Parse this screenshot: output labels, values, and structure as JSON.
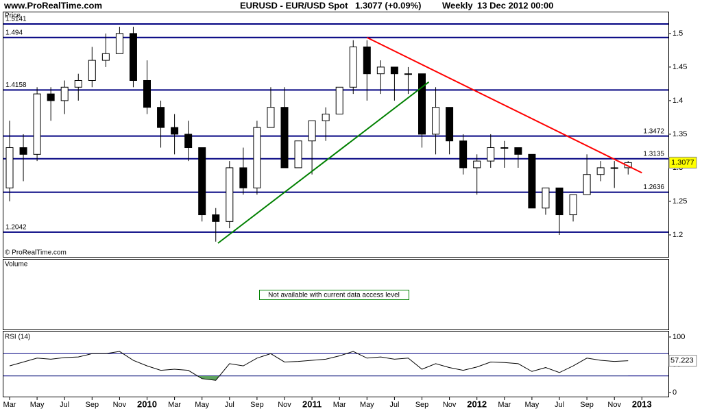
{
  "header": {
    "site": "www.ProRealTime.com",
    "symbol": "EURUSD - EUR/USD Spot",
    "quote": "1.3077 (+0.09%)",
    "period": "Weekly",
    "date": "13 Dec 2012 00:00",
    "copyright": "© ProRealTime.com"
  },
  "chart_data": [
    {
      "type": "candlestick",
      "title": "Price",
      "categories": [
        "Mar",
        null,
        "May",
        null,
        "Jul",
        null,
        "Sep",
        null,
        "Nov",
        null,
        "2010",
        null,
        "Mar",
        null,
        "May",
        null,
        "Jul",
        null,
        "Sep",
        null,
        "Nov",
        null,
        "2011",
        null,
        "Mar",
        null,
        "May",
        null,
        "Jul",
        null,
        "Sep",
        null,
        "Nov",
        null,
        "2012",
        null,
        "Mar",
        null,
        "May",
        null,
        "Jul",
        null,
        "Sep",
        null,
        "Nov",
        null,
        "2013"
      ],
      "open": [
        1.27,
        1.33,
        1.32,
        1.41,
        1.4,
        1.42,
        1.43,
        1.46,
        1.47,
        1.5,
        1.43,
        1.39,
        1.36,
        1.35,
        1.33,
        1.23,
        1.22,
        1.3,
        1.27,
        1.36,
        1.39,
        1.3,
        1.34,
        1.37,
        1.38,
        1.42,
        1.48,
        1.44,
        1.45,
        1.44,
        1.44,
        1.35,
        1.39,
        1.34,
        1.3,
        1.31,
        1.33,
        1.33,
        1.32,
        1.24,
        1.27,
        1.23,
        1.26,
        1.29,
        1.3,
        1.3,
        null
      ],
      "high": [
        1.37,
        1.35,
        1.42,
        1.42,
        1.43,
        1.44,
        1.48,
        1.5,
        1.51,
        1.51,
        1.46,
        1.4,
        1.38,
        1.37,
        1.33,
        1.24,
        1.31,
        1.33,
        1.37,
        1.42,
        1.42,
        1.34,
        1.37,
        1.39,
        1.42,
        1.49,
        1.49,
        1.46,
        1.45,
        1.45,
        1.44,
        1.42,
        1.39,
        1.35,
        1.32,
        1.35,
        1.34,
        1.33,
        1.32,
        1.27,
        1.27,
        1.26,
        1.32,
        1.31,
        1.31,
        1.31,
        null
      ],
      "low": [
        1.25,
        1.28,
        1.31,
        1.37,
        1.38,
        1.4,
        1.42,
        1.45,
        1.47,
        1.42,
        1.38,
        1.33,
        1.32,
        1.31,
        1.22,
        1.19,
        1.21,
        1.26,
        1.26,
        1.36,
        1.3,
        1.3,
        1.29,
        1.34,
        1.38,
        1.41,
        1.4,
        1.41,
        1.4,
        1.41,
        1.33,
        1.32,
        1.32,
        1.29,
        1.26,
        1.3,
        1.3,
        1.3,
        1.24,
        1.23,
        1.2,
        1.22,
        1.26,
        1.28,
        1.27,
        1.29,
        null
      ],
      "close": [
        1.33,
        1.32,
        1.41,
        1.4,
        1.42,
        1.43,
        1.46,
        1.47,
        1.5,
        1.43,
        1.39,
        1.36,
        1.35,
        1.33,
        1.23,
        1.22,
        1.3,
        1.27,
        1.36,
        1.39,
        1.3,
        1.34,
        1.37,
        1.38,
        1.42,
        1.48,
        1.44,
        1.45,
        1.44,
        1.44,
        1.35,
        1.39,
        1.34,
        1.3,
        1.31,
        1.33,
        1.33,
        1.32,
        1.24,
        1.27,
        1.23,
        1.26,
        1.29,
        1.3,
        1.3,
        1.3077,
        null
      ],
      "up_color": "#ffffff",
      "down_color": "#000000",
      "ylim": [
        1.1673,
        1.5315
      ],
      "yticks": [
        1.2,
        1.25,
        1.3,
        1.35,
        1.4,
        1.45,
        1.5
      ],
      "levels": [
        {
          "value": 1.5141,
          "label_side": "left"
        },
        {
          "value": 1.494,
          "label_side": "left"
        },
        {
          "value": 1.4158,
          "label_side": "left"
        },
        {
          "value": 1.3472,
          "label_side": "right"
        },
        {
          "value": 1.3135,
          "label_side": "right"
        },
        {
          "value": 1.2636,
          "label_side": "right"
        },
        {
          "value": 1.2042,
          "label_side": "left"
        }
      ],
      "level_color": "#000080",
      "trendlines": [
        {
          "color": "#ff0000",
          "points": [
            [
              26,
              1.494
            ],
            [
              46,
              1.2925
            ]
          ]
        },
        {
          "color": "#008000",
          "points": [
            [
              15.16,
              1.1877
            ],
            [
              30.5,
              1.4278
            ]
          ]
        }
      ],
      "last_price": 1.3077,
      "last_price_color": "#ffff00"
    },
    {
      "type": "message",
      "title": "Volume",
      "message": "Not available with current data access level"
    },
    {
      "type": "line",
      "title": "RSI (14)",
      "values": [
        48,
        55,
        62,
        60,
        63,
        64,
        70,
        70,
        74,
        58,
        48,
        40,
        42,
        40,
        25,
        22,
        52,
        48,
        62,
        70,
        55,
        56,
        58,
        60,
        66,
        74,
        62,
        64,
        60,
        62,
        42,
        52,
        45,
        40,
        46,
        55,
        54,
        52,
        38,
        45,
        36,
        48,
        62,
        58,
        56,
        57.223,
        null
      ],
      "color": "#000000",
      "ylim": [
        -8.5,
        109.8
      ],
      "yticks": [
        0,
        50,
        100
      ],
      "levels": [
        30,
        70
      ],
      "level_color": "#000080",
      "oversold_fill": "#5fa35f",
      "last_value": 57.223
    }
  ]
}
